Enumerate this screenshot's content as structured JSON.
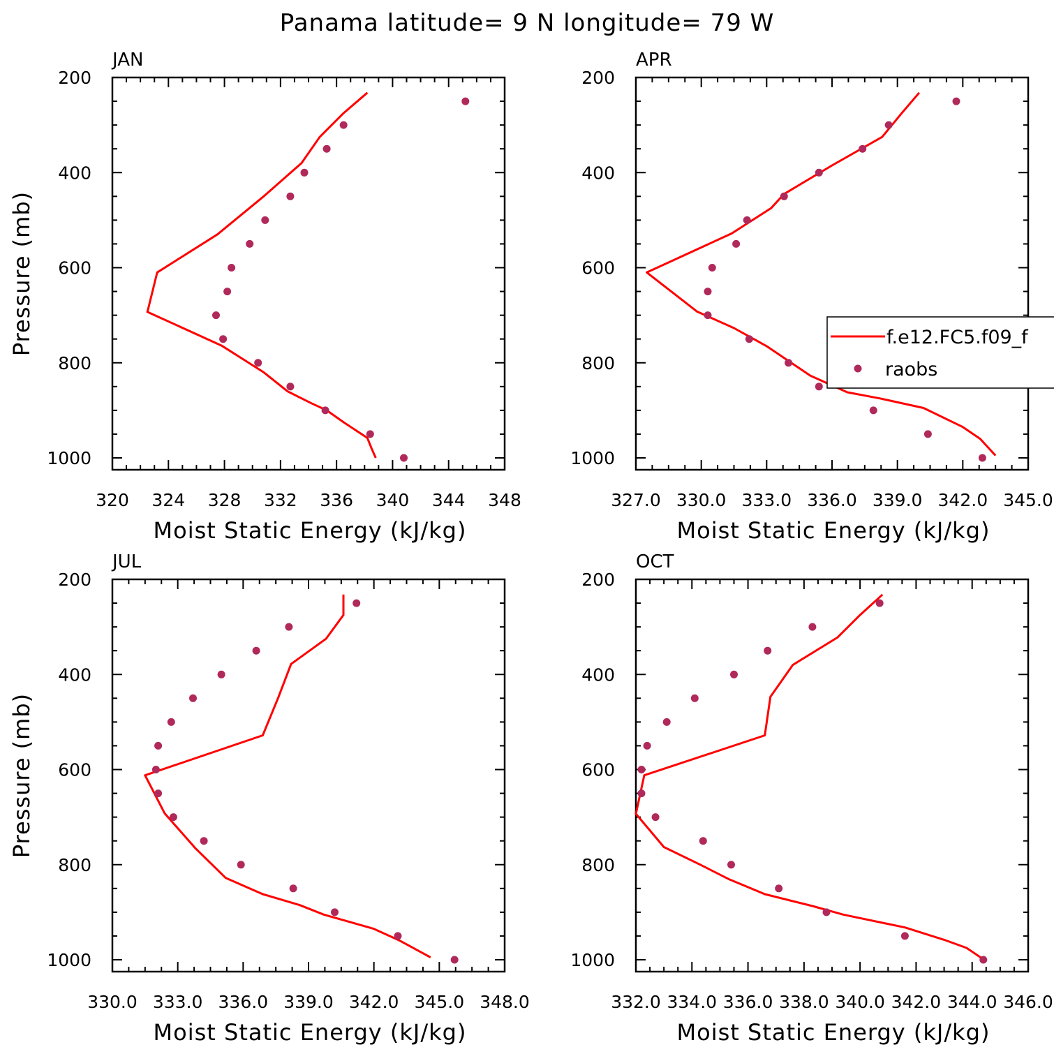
{
  "figure": {
    "title": "Panama  latitude= 9 N longitude= 79 W"
  },
  "legend": {
    "placement": "right, overlapping APR panel",
    "model_label": "f.e12.FC5.f09_f",
    "obs_label": "raobs"
  },
  "colors": {
    "model_line": "#ff0000",
    "obs_marker": "#b0295a",
    "axes": "#000000"
  },
  "chart_data": [
    {
      "type": "line",
      "panel": "JAN",
      "title": "JAN",
      "xlabel": "Moist Static Energy (kJ/kg)",
      "ylabel": "Pressure (mb)",
      "xlim": [
        320,
        348
      ],
      "ylim": [
        1000,
        200
      ],
      "y_inverted": true,
      "xticks": [
        "320",
        "324",
        "328",
        "332",
        "336",
        "340",
        "344",
        "348"
      ],
      "yticks": [
        "200",
        "400",
        "600",
        "800",
        "1000"
      ],
      "grid": false,
      "series": [
        {
          "kind": "line",
          "points": [
            [
              338.8,
              1000
            ],
            [
              338.5,
              980
            ],
            [
              338.2,
              958
            ],
            [
              336.5,
              925
            ],
            [
              335.3,
              900
            ],
            [
              334.2,
              885
            ],
            [
              332.5,
              860
            ],
            [
              330.8,
              820
            ],
            [
              327.8,
              764
            ],
            [
              322.5,
              693
            ],
            [
              323.2,
              610
            ],
            [
              327.5,
              530
            ],
            [
              330.8,
              450
            ],
            [
              333.5,
              380
            ],
            [
              334.8,
              325
            ],
            [
              336.5,
              275
            ],
            [
              338.2,
              232
            ]
          ]
        },
        {
          "kind": "scatter",
          "points": [
            [
              345.2,
              250
            ],
            [
              336.5,
              300
            ],
            [
              335.3,
              350
            ],
            [
              333.7,
              400
            ],
            [
              332.7,
              450
            ],
            [
              330.9,
              500
            ],
            [
              329.8,
              550
            ],
            [
              328.5,
              600
            ],
            [
              328.2,
              650
            ],
            [
              327.4,
              700
            ],
            [
              327.9,
              750
            ],
            [
              330.4,
              800
            ],
            [
              332.7,
              850
            ],
            [
              335.2,
              900
            ],
            [
              338.4,
              950
            ],
            [
              340.8,
              1000
            ]
          ]
        }
      ]
    },
    {
      "type": "line",
      "panel": "APR",
      "title": "APR",
      "xlabel": "Moist Static Energy (kJ/kg)",
      "ylabel": "",
      "xlim": [
        327.0,
        345.0
      ],
      "ylim": [
        1000,
        200
      ],
      "y_inverted": true,
      "xticks": [
        "327.0",
        "330.0",
        "333.0",
        "336.0",
        "339.0",
        "342.0",
        "345.0"
      ],
      "yticks": [
        "200",
        "400",
        "600",
        "800",
        "1000"
      ],
      "grid": false,
      "series": [
        {
          "kind": "line",
          "points": [
            [
              343.5,
              995
            ],
            [
              342.8,
              960
            ],
            [
              342.0,
              935
            ],
            [
              340.2,
              895
            ],
            [
              338.2,
              875
            ],
            [
              336.7,
              862
            ],
            [
              335.0,
              827
            ],
            [
              333.0,
              765
            ],
            [
              331.5,
              727
            ],
            [
              329.8,
              692
            ],
            [
              327.5,
              610
            ],
            [
              331.4,
              528
            ],
            [
              333.2,
              475
            ],
            [
              333.8,
              445
            ],
            [
              336.0,
              385
            ],
            [
              338.3,
              325
            ],
            [
              339.2,
              275
            ],
            [
              340.0,
              232
            ]
          ]
        },
        {
          "kind": "scatter",
          "points": [
            [
              341.7,
              250
            ],
            [
              338.6,
              300
            ],
            [
              337.4,
              350
            ],
            [
              335.4,
              400
            ],
            [
              333.8,
              450
            ],
            [
              332.1,
              500
            ],
            [
              331.6,
              550
            ],
            [
              330.5,
              600
            ],
            [
              330.3,
              650
            ],
            [
              330.3,
              700
            ],
            [
              332.2,
              750
            ],
            [
              334.0,
              800
            ],
            [
              335.4,
              850
            ],
            [
              337.9,
              900
            ],
            [
              340.4,
              950
            ],
            [
              342.9,
              1000
            ]
          ]
        }
      ]
    },
    {
      "type": "line",
      "panel": "JUL",
      "title": "JUL",
      "xlabel": "Moist Static Energy (kJ/kg)",
      "ylabel": "Pressure (mb)",
      "xlim": [
        330.0,
        348.0
      ],
      "ylim": [
        1000,
        200
      ],
      "y_inverted": true,
      "xticks": [
        "330.0",
        "333.0",
        "336.0",
        "339.0",
        "342.0",
        "345.0",
        "348.0"
      ],
      "yticks": [
        "200",
        "400",
        "600",
        "800",
        "1000"
      ],
      "grid": false,
      "series": [
        {
          "kind": "line",
          "points": [
            [
              344.6,
              995
            ],
            [
              343.2,
              960
            ],
            [
              342.0,
              935
            ],
            [
              339.7,
              905
            ],
            [
              338.6,
              885
            ],
            [
              336.9,
              862
            ],
            [
              335.2,
              828
            ],
            [
              333.8,
              765
            ],
            [
              332.4,
              692
            ],
            [
              331.5,
              612
            ],
            [
              336.9,
              528
            ],
            [
              337.6,
              450
            ],
            [
              338.2,
              378
            ],
            [
              339.8,
              325
            ],
            [
              340.6,
              275
            ],
            [
              340.6,
              232
            ]
          ]
        },
        {
          "kind": "scatter",
          "points": [
            [
              341.2,
              250
            ],
            [
              338.1,
              300
            ],
            [
              336.6,
              350
            ],
            [
              335.0,
              400
            ],
            [
              333.7,
              450
            ],
            [
              332.7,
              500
            ],
            [
              332.1,
              550
            ],
            [
              332.0,
              600
            ],
            [
              332.1,
              650
            ],
            [
              332.8,
              700
            ],
            [
              334.2,
              750
            ],
            [
              335.9,
              800
            ],
            [
              338.3,
              850
            ],
            [
              340.2,
              900
            ],
            [
              343.1,
              950
            ],
            [
              345.7,
              1000
            ]
          ]
        }
      ]
    },
    {
      "type": "line",
      "panel": "OCT",
      "title": "OCT",
      "xlabel": "Moist Static Energy (kJ/kg)",
      "ylabel": "",
      "xlim": [
        332.0,
        346.0
      ],
      "ylim": [
        1000,
        200
      ],
      "y_inverted": true,
      "xticks": [
        "332.0",
        "334.0",
        "336.0",
        "338.0",
        "340.0",
        "342.0",
        "344.0",
        "346.0"
      ],
      "yticks": [
        "200",
        "400",
        "600",
        "800",
        "1000"
      ],
      "grid": false,
      "series": [
        {
          "kind": "line",
          "points": [
            [
              344.3,
              995
            ],
            [
              343.8,
              975
            ],
            [
              343.0,
              958
            ],
            [
              341.6,
              932
            ],
            [
              339.4,
              905
            ],
            [
              338.3,
              887
            ],
            [
              336.6,
              862
            ],
            [
              335.3,
              830
            ],
            [
              334.3,
              800
            ],
            [
              333.0,
              763
            ],
            [
              332.0,
              693
            ],
            [
              332.3,
              612
            ],
            [
              336.6,
              528
            ],
            [
              336.8,
              447
            ],
            [
              337.6,
              380
            ],
            [
              339.2,
              322
            ],
            [
              340.0,
              275
            ],
            [
              340.8,
              232
            ]
          ]
        },
        {
          "kind": "scatter",
          "points": [
            [
              340.7,
              250
            ],
            [
              338.3,
              300
            ],
            [
              336.7,
              350
            ],
            [
              335.5,
              400
            ],
            [
              334.1,
              450
            ],
            [
              333.1,
              500
            ],
            [
              332.4,
              550
            ],
            [
              332.2,
              600
            ],
            [
              332.2,
              650
            ],
            [
              332.7,
              700
            ],
            [
              334.4,
              750
            ],
            [
              335.4,
              800
            ],
            [
              337.1,
              850
            ],
            [
              338.8,
              900
            ],
            [
              341.6,
              950
            ],
            [
              344.4,
              1000
            ]
          ]
        }
      ]
    }
  ]
}
